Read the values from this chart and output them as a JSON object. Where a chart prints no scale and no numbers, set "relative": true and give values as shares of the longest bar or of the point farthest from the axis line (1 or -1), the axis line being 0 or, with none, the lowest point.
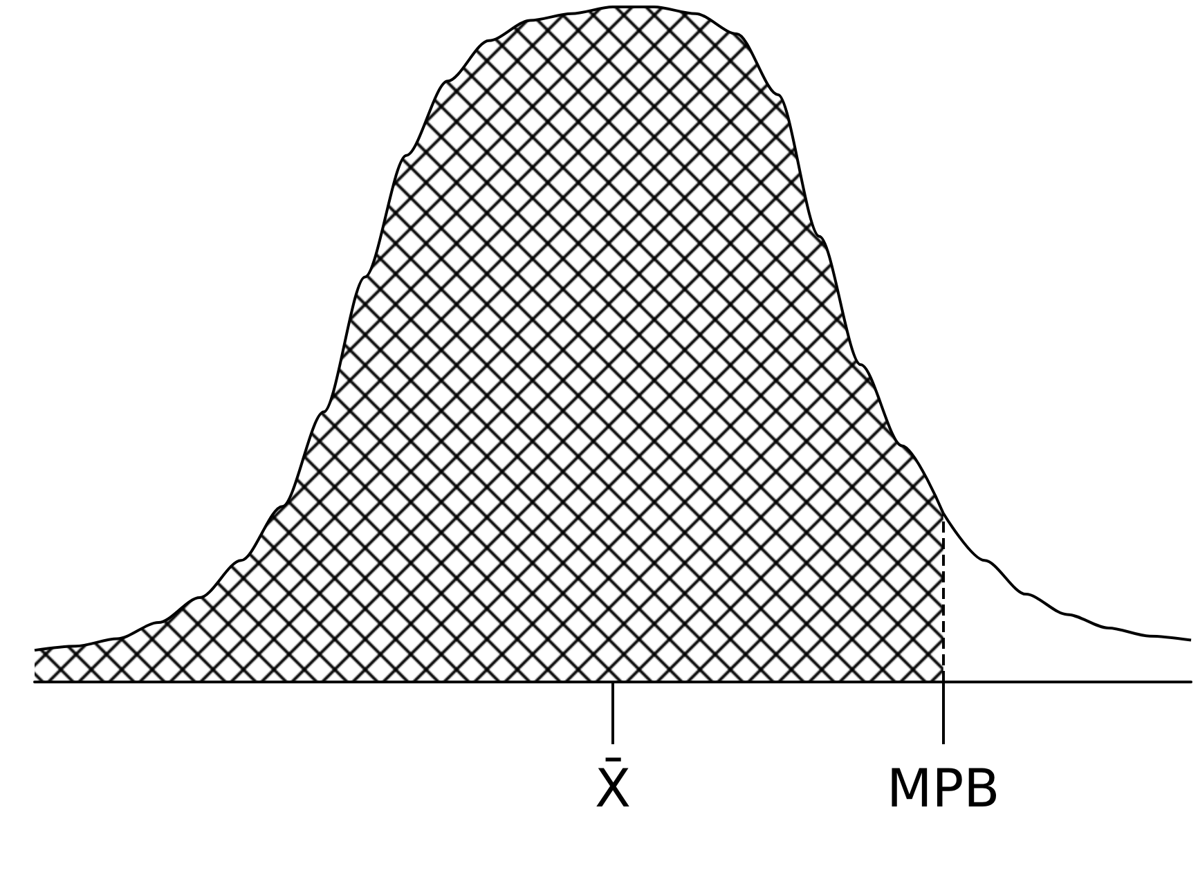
{
  "chart_data": {
    "type": "area",
    "relative": true,
    "grid": false,
    "marker": "none",
    "categories": [
      null,
      null,
      null,
      null,
      null,
      null,
      null,
      null,
      null,
      null,
      null,
      null,
      null,
      null,
      "X̄",
      null,
      null,
      null,
      null,
      null,
      null,
      null,
      "MPB",
      null,
      null,
      null,
      null,
      null,
      null
    ],
    "series": [
      {
        "color": "#000000",
        "values": [
          0.047,
          0.053,
          0.064,
          0.088,
          0.125,
          0.18,
          0.26,
          0.4,
          0.6,
          0.78,
          0.89,
          0.95,
          0.98,
          0.99,
          1.0,
          1.0,
          0.99,
          0.96,
          0.87,
          0.66,
          0.47,
          0.35,
          0.25,
          null,
          null,
          null,
          null,
          null,
          null
        ]
      },
      {
        "type": "line",
        "color": "#000000",
        "values": [
          null,
          null,
          null,
          null,
          null,
          null,
          null,
          null,
          null,
          null,
          null,
          null,
          null,
          null,
          null,
          null,
          null,
          null,
          null,
          null,
          null,
          null,
          0.25,
          0.18,
          0.13,
          0.1,
          0.08,
          0.068,
          0.062
        ]
      }
    ],
    "ref_lines": [
      {
        "axis": "x",
        "value": "MPB",
        "line_style": "dashed"
      }
    ]
  }
}
